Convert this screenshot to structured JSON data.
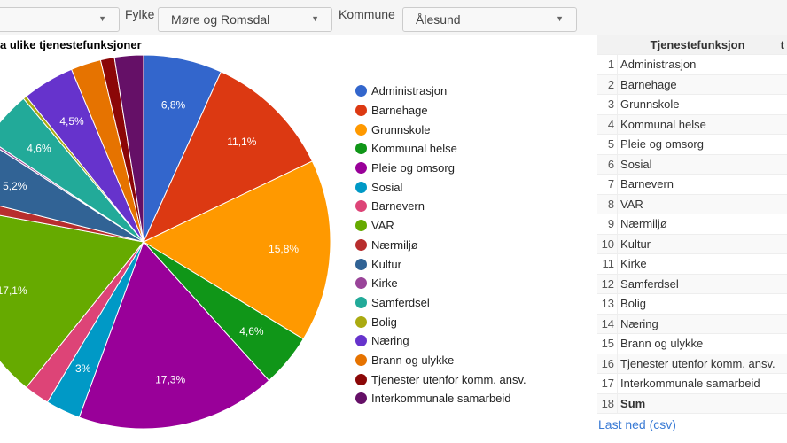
{
  "filters": {
    "fylke_label": "Fylke",
    "fylke_value": "Møre og Romsdal",
    "kommune_label": "Kommune",
    "kommune_value": "Ålesund",
    "first_value": ""
  },
  "chart_data": {
    "type": "pie",
    "title": "a ulike tjenestefunksjoner",
    "legend_position": "right",
    "categories": [
      "Administrasjon",
      "Barnehage",
      "Grunnskole",
      "Kommunal helse",
      "Pleie og omsorg",
      "Sosial",
      "Barnevern",
      "VAR",
      "Nærmiljø",
      "Kultur",
      "Kirke",
      "Samferdsel",
      "Bolig",
      "Næring",
      "Brann og ulykke",
      "Tjenester utenfor komm. ansv.",
      "Interkommunale samarbeid"
    ],
    "values": [
      6.8,
      11.1,
      15.8,
      4.6,
      17.3,
      3.0,
      2.2,
      17.1,
      1.0,
      5.2,
      0.2,
      4.6,
      0.3,
      4.5,
      2.6,
      1.2,
      2.5
    ],
    "labels": [
      "6,8%",
      "11,1%",
      "15,8%",
      "4,6%",
      "17,3%",
      "3%",
      "",
      "17,1%",
      "",
      "5,2%",
      "",
      "4,6%",
      "",
      "4,5%",
      "",
      "",
      ""
    ],
    "colors": [
      "#3366cc",
      "#dc3912",
      "#ff9900",
      "#109618",
      "#990099",
      "#0099c6",
      "#dd4477",
      "#66aa00",
      "#b82e2e",
      "#316395",
      "#994499",
      "#22aa99",
      "#aaaa11",
      "#6633cc",
      "#e67300",
      "#8b0707",
      "#651067"
    ]
  },
  "table": {
    "headers": [
      "",
      "Tjenestefunksjon",
      "t"
    ],
    "rows": [
      [
        "1",
        "Administrasjon"
      ],
      [
        "2",
        "Barnehage"
      ],
      [
        "3",
        "Grunnskole"
      ],
      [
        "4",
        "Kommunal helse"
      ],
      [
        "5",
        "Pleie og omsorg"
      ],
      [
        "6",
        "Sosial"
      ],
      [
        "7",
        "Barnevern"
      ],
      [
        "8",
        "VAR"
      ],
      [
        "9",
        "Nærmiljø"
      ],
      [
        "10",
        "Kultur"
      ],
      [
        "11",
        "Kirke"
      ],
      [
        "12",
        "Samferdsel"
      ],
      [
        "13",
        "Bolig"
      ],
      [
        "14",
        "Næring"
      ],
      [
        "15",
        "Brann og ulykke"
      ],
      [
        "16",
        "Tjenester utenfor komm. ansv."
      ],
      [
        "17",
        "Interkommunale samarbeid"
      ],
      [
        "18",
        "Sum"
      ]
    ]
  },
  "download_link": "Last ned (csv)"
}
